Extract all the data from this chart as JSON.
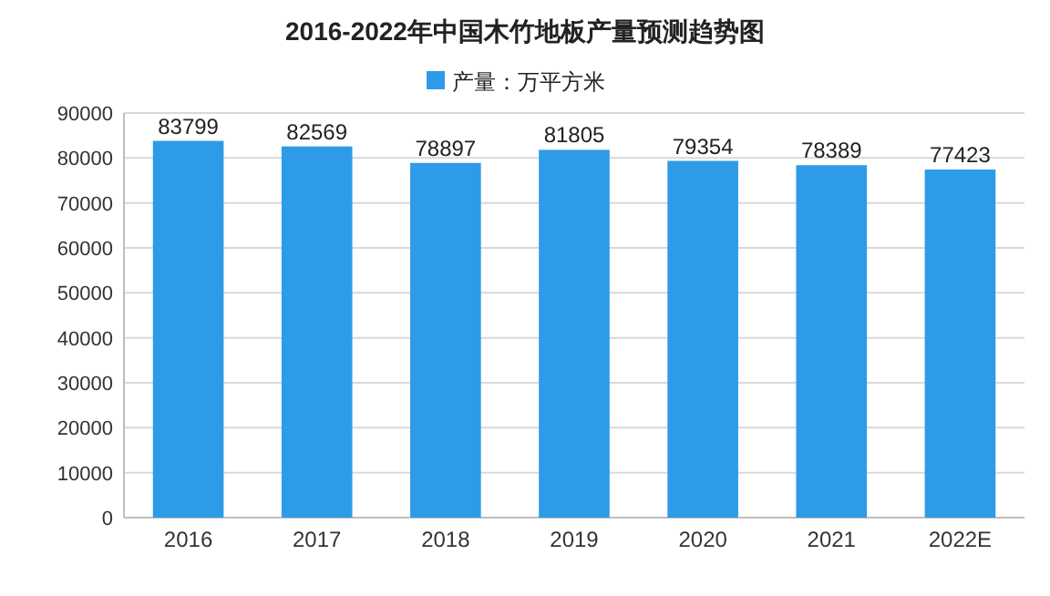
{
  "chart_data": {
    "type": "bar",
    "title": "2016-2022年中国木竹地板产量预测趋势图",
    "categories": [
      "2016",
      "2017",
      "2018",
      "2019",
      "2020",
      "2021",
      "2022E"
    ],
    "series": [
      {
        "name": "产量：万平方米",
        "color": "#2e9be8",
        "values": [
          83799,
          82569,
          78897,
          81805,
          79354,
          78389,
          77423
        ]
      }
    ],
    "ylim": [
      0,
      90000
    ],
    "yticks": [
      0,
      10000,
      20000,
      30000,
      40000,
      50000,
      60000,
      70000,
      80000,
      90000
    ],
    "grid": "y",
    "legend": "top",
    "data_labels": true
  }
}
